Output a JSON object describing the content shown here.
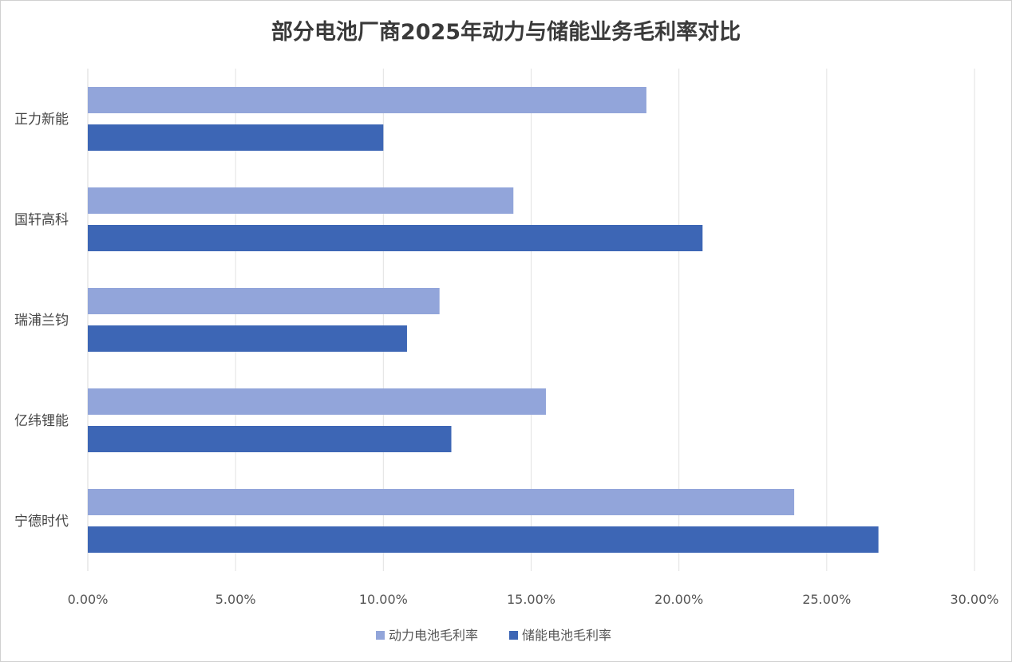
{
  "chart_data": {
    "type": "bar",
    "orientation": "horizontal",
    "title": "部分电池厂商2025年动力与储能业务毛利率对比",
    "categories": [
      "正力新能",
      "国轩高科",
      "瑞浦兰钧",
      "亿纬锂能",
      "宁德时代"
    ],
    "series": [
      {
        "name": "动力电池毛利率",
        "color": "#92a5da",
        "values": [
          18.9,
          14.4,
          11.9,
          15.5,
          23.9
        ]
      },
      {
        "name": "储能电池毛利率",
        "color": "#3d66b5",
        "values": [
          10.0,
          20.8,
          10.8,
          12.3,
          26.75
        ]
      }
    ],
    "xlim": [
      0,
      30
    ],
    "xticks": [
      "0.00%",
      "5.00%",
      "10.00%",
      "15.00%",
      "20.00%",
      "25.00%",
      "30.00%"
    ],
    "grid": true,
    "legend": "bottom"
  }
}
